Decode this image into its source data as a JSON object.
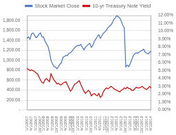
{
  "chart_data": {
    "type": "line",
    "categories": [
      "1/1/2007",
      null,
      null,
      "4/1/2007",
      null,
      null,
      "7/1/2007",
      null,
      null,
      "10/1/2007",
      null,
      "1/1/2008",
      null,
      null,
      "4/1/2008",
      null,
      null,
      "7/1/2008",
      null,
      null,
      "10/1/2008",
      null,
      null,
      "1/1/2009",
      null,
      null,
      "4/1/2009",
      null,
      null,
      "7/1/2009",
      null,
      "10/1/2009",
      null,
      null,
      "1/1/2010",
      null,
      null,
      "4/1/2010",
      null,
      null,
      "7/1/2010",
      null,
      null,
      "10/1/2010",
      null,
      null,
      "1/1/2011",
      null,
      null,
      "4/1/2011",
      null,
      null,
      "7/1/2011",
      null,
      "10/1/2011",
      null,
      null,
      "1/1/2012",
      null,
      null,
      "4/1/2012",
      null,
      null,
      "7/1/2012",
      null,
      null,
      "10/1/2012",
      null,
      null,
      "1/1/2013",
      null,
      null,
      "4/1/2013",
      null,
      "7/1/2013",
      null,
      null,
      "10/1/2013",
      null,
      null,
      "1/1/2014",
      null,
      null,
      "4/1/2014"
    ],
    "series": [
      {
        "name": "Stock Market Close",
        "color": "#4472C4",
        "values": [
          1438,
          1468,
          1421,
          1530,
          1549,
          1503,
          1455,
          1473,
          1526,
          1549,
          1468,
          1468,
          1385,
          1330,
          1280,
          1166,
          1000,
          931,
          870,
          860,
          830,
          870,
          920,
          950,
          1057,
          1073,
          1100,
          1095,
          1141,
          1150,
          1180,
          1220,
          1257,
          1280,
          1300,
          1294,
          1320,
          1257,
          1210,
          1257,
          1290,
          1320,
          1340,
          1258,
          1300,
          1380,
          1426,
          1480,
          1514,
          1440,
          1494,
          1540,
          1569,
          1600,
          1650,
          1680,
          1707,
          1750,
          1820,
          1849,
          1900,
          1870,
          1850,
          1782,
          1700,
          1650,
          865,
          900,
          870,
          933,
          1010,
          1090,
          1126,
          1150,
          1140,
          1166,
          1180,
          1200,
          1220,
          1160,
          1140,
          1126,
          1160,
          1180
        ]
      },
      {
        "name": "10-yr Treasury Note Yield",
        "color": "#CC0000",
        "axis": "y2",
        "values": [
          0.0525,
          0.0515,
          0.05,
          0.051,
          0.05,
          0.049,
          0.047,
          0.046,
          0.042,
          0.038,
          0.035,
          0.034,
          0.038,
          0.04,
          0.038,
          0.036,
          0.046,
          0.042,
          0.038,
          0.036,
          0.033,
          0.034,
          0.032,
          0.032,
          0.034,
          0.035,
          0.036,
          0.032,
          0.028,
          0.024,
          0.026,
          0.03,
          0.033,
          0.034,
          0.036,
          0.037,
          0.032,
          0.028,
          0.024,
          0.021,
          0.023,
          0.025,
          0.023,
          0.018,
          0.02,
          0.021,
          0.019,
          0.018,
          0.021,
          0.016,
          0.018,
          0.023,
          0.026,
          0.028,
          0.027,
          0.028,
          0.03,
          0.029,
          0.027,
          0.026,
          0.025,
          0.024,
          0.023,
          0.025,
          0.026,
          0.028,
          0.027,
          0.029,
          0.027,
          0.027,
          0.025,
          0.025,
          0.027,
          0.029,
          0.028,
          0.028,
          0.029,
          0.03,
          0.028,
          0.027,
          0.026,
          0.028,
          0.03,
          0.028
        ]
      }
    ],
    "ylim": [
      0,
      1900
    ],
    "yticks": [
      {
        "value": 0,
        "label": "-"
      },
      {
        "value": 200,
        "label": "200.00"
      },
      {
        "value": 400,
        "label": "400.00"
      },
      {
        "value": 600,
        "label": "600.00"
      },
      {
        "value": 800,
        "label": "800.00"
      },
      {
        "value": 1000,
        "label": "1,000.00"
      },
      {
        "value": 1200,
        "label": "1,200.00"
      },
      {
        "value": 1400,
        "label": "1,400.00"
      },
      {
        "value": 1600,
        "label": "1,600.00"
      },
      {
        "value": 1800,
        "label": "1,800.00"
      }
    ],
    "y2lim": [
      0.0,
      0.12
    ],
    "y2ticks": [
      {
        "value": 0.0,
        "label": "0.00%"
      },
      {
        "value": 0.01,
        "label": "1.00%"
      },
      {
        "value": 0.02,
        "label": "2.00%"
      },
      {
        "value": 0.03,
        "label": "3.00%"
      },
      {
        "value": 0.04,
        "label": "4.00%"
      },
      {
        "value": 0.05,
        "label": "5.00%"
      },
      {
        "value": 0.06,
        "label": "6.00%"
      },
      {
        "value": 0.07,
        "label": "7.00%"
      },
      {
        "value": 0.08,
        "label": "8.00%"
      },
      {
        "value": 0.09,
        "label": "9.00%"
      },
      {
        "value": 0.1,
        "label": "10.00%"
      },
      {
        "value": 0.11,
        "label": "11.00%"
      },
      {
        "value": 0.12,
        "label": "12.00%"
      }
    ],
    "grid": true,
    "legend": "top"
  }
}
